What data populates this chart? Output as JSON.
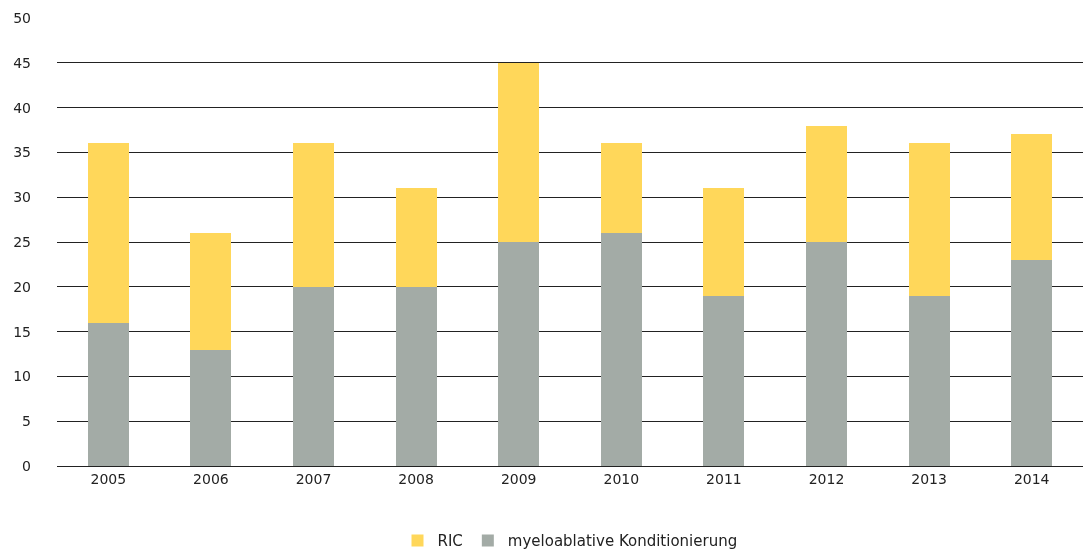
{
  "chart_data": {
    "type": "bar",
    "stacked": true,
    "categories": [
      "2005",
      "2006",
      "2007",
      "2008",
      "2009",
      "2010",
      "2011",
      "2012",
      "2013",
      "2014"
    ],
    "series": [
      {
        "name": "myeloablative Konditionierung",
        "color": "#a3aba6",
        "values": [
          16,
          13,
          20,
          20,
          25,
          26,
          19,
          25,
          19,
          23
        ]
      },
      {
        "name": "RIC",
        "color": "#ffd75a",
        "values": [
          20,
          13,
          16,
          11,
          20,
          10,
          12,
          13,
          17,
          14
        ]
      }
    ],
    "ylim": [
      0,
      50
    ],
    "yticks": [
      0,
      5,
      10,
      15,
      20,
      25,
      30,
      35,
      40,
      45,
      50
    ],
    "grid": "y",
    "legend": "bottom"
  }
}
